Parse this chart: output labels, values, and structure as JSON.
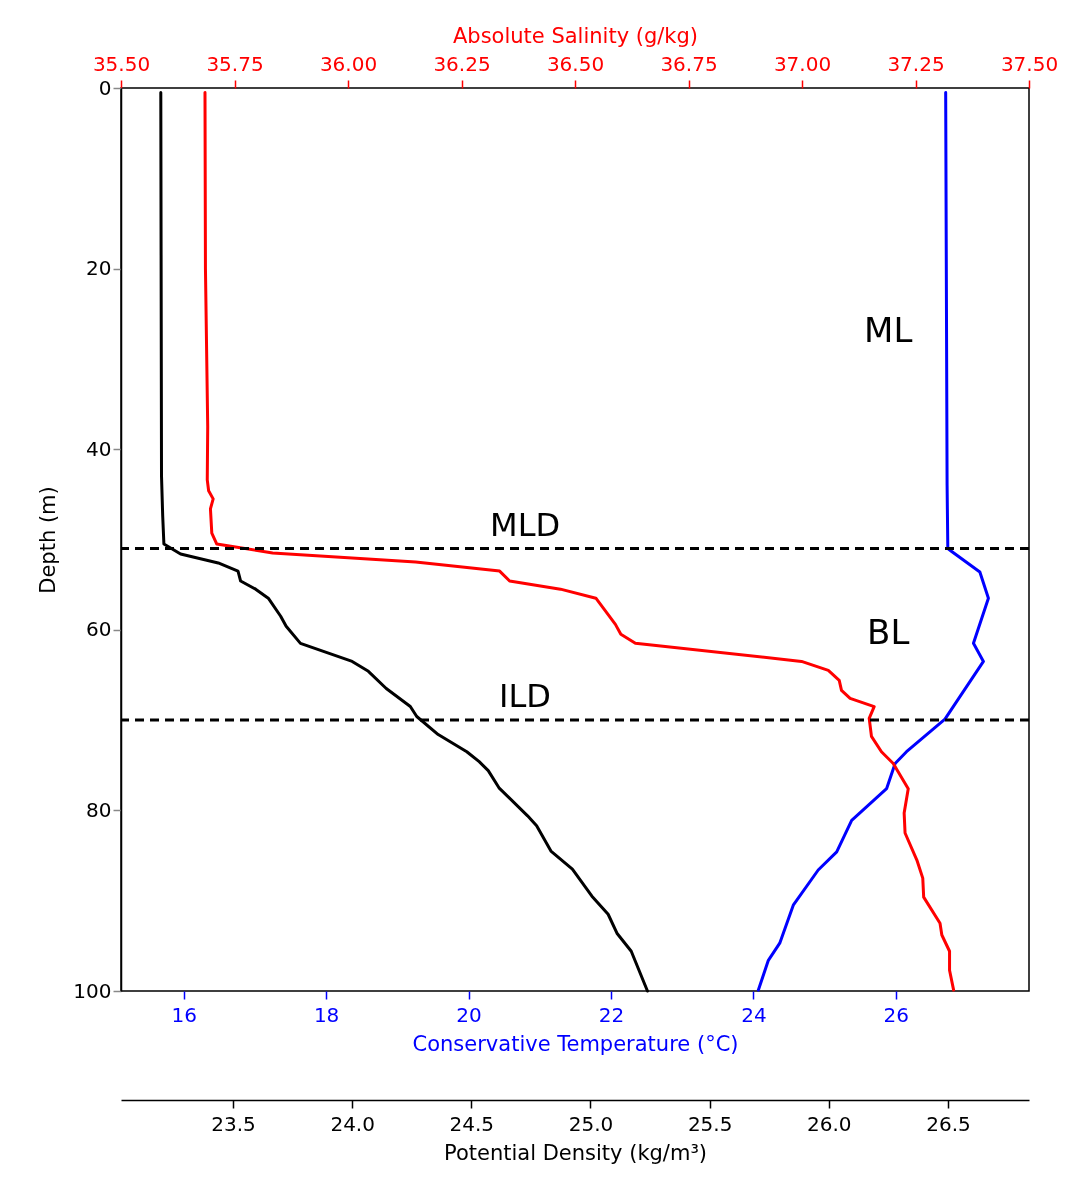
{
  "chart_data": [
    {
      "type": "line",
      "xlabel": "Conservative Temperature (°C)",
      "x2label": "Absolute Salinity (g/kg)",
      "ylabel": "Depth (m)",
      "xlim": [
        15.12,
        27.87
      ],
      "xticks": [
        16,
        18,
        20,
        22,
        24,
        26
      ],
      "x2lim": [
        35.5,
        37.5
      ],
      "x2ticks": [
        {
          "value": 35.5,
          "label": "35.50"
        },
        {
          "value": 35.75,
          "label": "35.75"
        },
        {
          "value": 36,
          "label": "36.00"
        },
        {
          "value": 36.25,
          "label": "36.25"
        },
        {
          "value": 36.5,
          "label": "36.50"
        },
        {
          "value": 36.75,
          "label": "36.75"
        },
        {
          "value": 37,
          "label": "37.00"
        },
        {
          "value": 37.25,
          "label": "37.25"
        },
        {
          "value": 37.5,
          "label": "37.50"
        }
      ],
      "ylim": [
        100,
        0
      ],
      "yticks": [
        0,
        20,
        40,
        60,
        80,
        100
      ],
      "series": [
        {
          "color": "#0000ff",
          "x": [
            26.7,
            26.72,
            26.73,
            26.78,
            27.18,
            27.3,
            27.09,
            27.23,
            26.9,
            26.69,
            26.15,
            25.99,
            25.87,
            25.38,
            25.17,
            24.91,
            24.56,
            24.37,
            24.21,
            24.07
          ],
          "values": [
            0.5,
            44,
            51,
            51.3,
            53.6,
            56.5,
            61.5,
            63.5,
            67.4,
            69.9,
            73.5,
            74.8,
            77.6,
            81.1,
            84.6,
            86.6,
            90.5,
            94.7,
            96.6,
            99.9
          ]
        },
        {
          "color": "#ff0000",
          "axis": "x2",
          "x": [
            35.685,
            35.686,
            35.691,
            35.69,
            35.693,
            35.703,
            35.697,
            35.7,
            35.711,
            35.834,
            36.149,
            36.334,
            36.356,
            36.468,
            36.546,
            36.589,
            36.601,
            36.633,
            36.999,
            37.058,
            37.082,
            37.087,
            37.106,
            37.159,
            37.148,
            37.153,
            37.175,
            37.201,
            37.234,
            37.225,
            37.227,
            37.253,
            37.266,
            37.268,
            37.304,
            37.308,
            37.325,
            37.325,
            37.334
          ],
          "values": [
            0.5,
            20,
            37.5,
            43.4,
            44.6,
            45.5,
            46.6,
            49.3,
            50.5,
            51.5,
            52.5,
            53.5,
            54.6,
            55.5,
            56.5,
            59.4,
            60.5,
            61.5,
            63.5,
            64.5,
            65.6,
            66.7,
            67.6,
            68.5,
            69.8,
            71.8,
            73.5,
            74.8,
            77.6,
            80.3,
            82.5,
            85.5,
            87.5,
            89.6,
            92.5,
            93.8,
            95.6,
            97.7,
            99.9
          ]
        }
      ],
      "ref_lines": [
        {
          "axis": "y",
          "value": 51,
          "label": "MLD",
          "color": "#000000",
          "line_style": "dashed"
        },
        {
          "axis": "y",
          "value": 70,
          "label": "ILD",
          "color": "#000000",
          "line_style": "dashed"
        }
      ],
      "annotations": [
        "ML",
        "BL"
      ],
      "marker": "none",
      "line_style": "solid"
    },
    {
      "type": "line",
      "xlabel": "Potential Density (kg/m³)",
      "xlim": [
        23.03,
        26.84
      ],
      "xticks": [
        23.5,
        {
          "value": 24,
          "label": "24.0"
        },
        24.5,
        {
          "value": 25,
          "label": "25.0"
        },
        25.5,
        {
          "value": 26,
          "label": "26.0"
        },
        26.5
      ],
      "ylim": [
        100,
        0
      ],
      "tick_labels": "x",
      "series": [
        {
          "color": "#000000",
          "x": [
            23.197,
            23.2,
            23.205,
            23.21,
            23.28,
            23.438,
            23.521,
            23.532,
            23.595,
            23.648,
            23.7,
            23.723,
            23.783,
            24.0,
            24.068,
            24.143,
            24.244,
            24.271,
            24.361,
            24.481,
            24.533,
            24.571,
            24.616,
            24.736,
            24.774,
            24.834,
            24.924,
            25.006,
            25.074,
            25.111,
            25.171,
            25.239
          ],
          "values": [
            0.5,
            43,
            47.4,
            50.5,
            51.6,
            52.6,
            53.5,
            54.6,
            55.5,
            56.5,
            58.5,
            59.6,
            61.5,
            63.5,
            64.6,
            66.5,
            68.5,
            69.6,
            71.6,
            73.5,
            74.6,
            75.6,
            77.5,
            80.6,
            81.7,
            84.5,
            86.5,
            89.5,
            91.5,
            93.6,
            95.6,
            100
          ]
        }
      ],
      "marker": "none",
      "line_style": "solid"
    }
  ]
}
